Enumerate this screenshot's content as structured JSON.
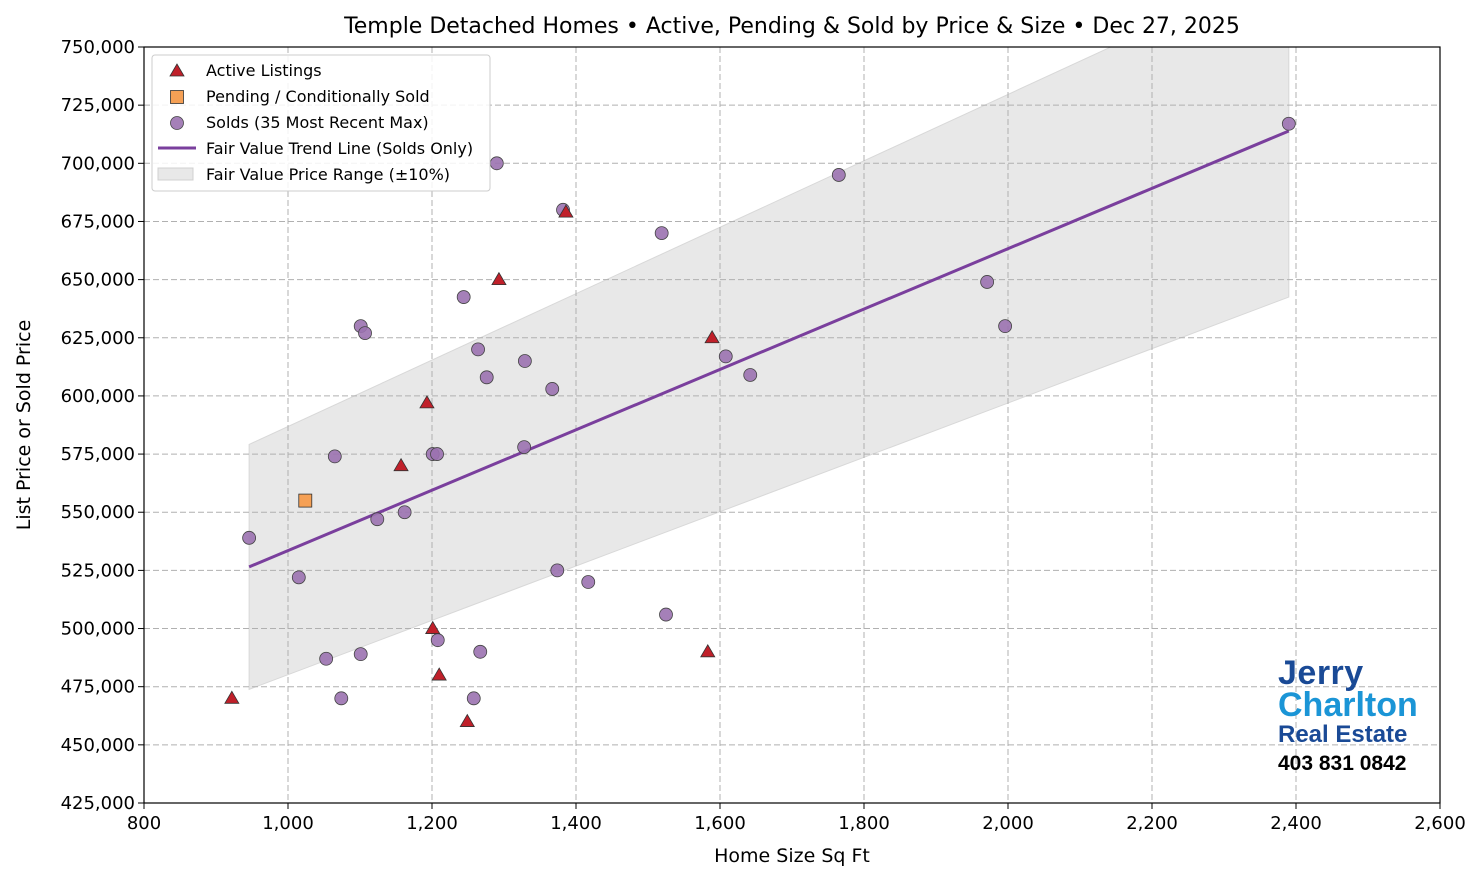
{
  "chart_data": {
    "type": "scatter",
    "title": "Temple Detached Homes • Active, Pending & Sold by Price & Size • Dec 27, 2025",
    "xlabel": "Home Size Sq Ft",
    "ylabel": "List Price or Sold Price",
    "xlim": [
      800,
      2600
    ],
    "ylim": [
      425000,
      750000
    ],
    "xticks": [
      800,
      1000,
      1200,
      1400,
      1600,
      1800,
      2000,
      2200,
      2400,
      2600
    ],
    "xtick_labels": [
      "800",
      "1,000",
      "1,200",
      "1,400",
      "1,600",
      "1,800",
      "2,000",
      "2,200",
      "2,400",
      "2,600"
    ],
    "yticks": [
      425000,
      450000,
      475000,
      500000,
      525000,
      550000,
      575000,
      600000,
      625000,
      650000,
      675000,
      700000,
      725000,
      750000
    ],
    "ytick_labels": [
      "425,000",
      "450,000",
      "475,000",
      "500,000",
      "525,000",
      "550,000",
      "575,000",
      "600,000",
      "625,000",
      "650,000",
      "675,000",
      "700,000",
      "725,000",
      "750,000"
    ],
    "grid": true,
    "legend_position": "top-left",
    "series": [
      {
        "name": "Active Listings",
        "marker": "triangle",
        "color": "#c0202a",
        "points": [
          [
            922,
            470000
          ],
          [
            1157,
            570000
          ],
          [
            1193,
            597000
          ],
          [
            1201,
            500000
          ],
          [
            1210,
            480000
          ],
          [
            1249,
            460000
          ],
          [
            1293,
            650000
          ],
          [
            1386,
            679000
          ],
          [
            1589,
            625000
          ],
          [
            1583,
            490000
          ]
        ]
      },
      {
        "name": "Pending / Conditionally Sold",
        "marker": "square",
        "color": "#f5a055",
        "points": [
          [
            1024,
            555000
          ]
        ]
      },
      {
        "name": "Solds (35 Most Recent Max)",
        "marker": "circle",
        "color": "#9b72b0",
        "points": [
          [
            946,
            539000
          ],
          [
            1015,
            522000
          ],
          [
            1053,
            487000
          ],
          [
            1074,
            470000
          ],
          [
            1065,
            574000
          ],
          [
            1101,
            630000
          ],
          [
            1107,
            627000
          ],
          [
            1101,
            489000
          ],
          [
            1124,
            547000
          ],
          [
            1162,
            550000
          ],
          [
            1201,
            575000
          ],
          [
            1207,
            575000
          ],
          [
            1208,
            495000
          ],
          [
            1244,
            642500
          ],
          [
            1264,
            620000
          ],
          [
            1276,
            608000
          ],
          [
            1267,
            490000
          ],
          [
            1258,
            470000
          ],
          [
            1290,
            700000
          ],
          [
            1328,
            578000
          ],
          [
            1329,
            615000
          ],
          [
            1367,
            603000
          ],
          [
            1374,
            525000
          ],
          [
            1382,
            680000
          ],
          [
            1417,
            520000
          ],
          [
            1519,
            670000
          ],
          [
            1525,
            506000
          ],
          [
            1608,
            617000
          ],
          [
            1642,
            609000
          ],
          [
            1765,
            695000
          ],
          [
            1971,
            649000
          ],
          [
            1996,
            630000
          ],
          [
            2390,
            717000
          ]
        ]
      },
      {
        "name": "Fair Value Trend Line (Solds Only)",
        "marker": "line",
        "color": "#7a3f9d",
        "points": [
          [
            946,
            526500
          ],
          [
            2390,
            713900
          ]
        ]
      },
      {
        "name": "Fair Value Price Range (±10%)",
        "marker": "band",
        "color": "#e8e8e8",
        "band_pct": 10
      }
    ]
  },
  "logo": {
    "line1": "Jerry",
    "line2": "Charlton",
    "line3": "Real Estate",
    "phone": "403 831 0842",
    "colors": {
      "dark": "#1a4a96",
      "light": "#1b95d6"
    }
  }
}
